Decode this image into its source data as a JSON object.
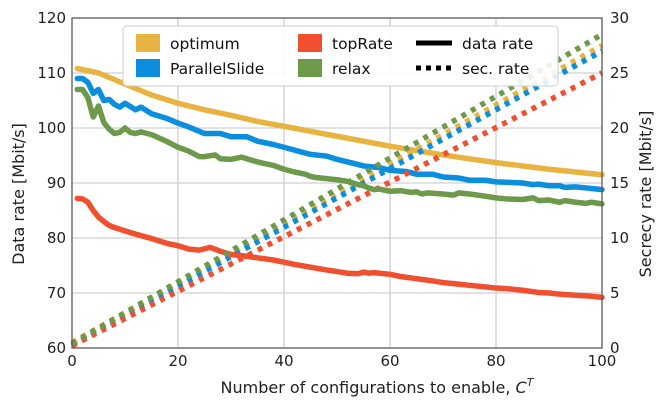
{
  "chart_data": {
    "type": "line",
    "xlabel": "Number of configurations to enable, ",
    "xlabel_symbol": "C",
    "xlabel_superscript": "T",
    "ylabel": "Data rate [Mbit/s]",
    "y2label": "Secrecy rate [Mbit/s]",
    "xlim": [
      0,
      100
    ],
    "ylim": [
      60,
      120
    ],
    "y2lim": [
      0,
      30
    ],
    "xticks": [
      0,
      20,
      40,
      60,
      80,
      100
    ],
    "yticks": [
      60,
      70,
      80,
      90,
      100,
      110,
      120
    ],
    "y2ticks": [
      0,
      5,
      10,
      15,
      20,
      25,
      30
    ],
    "grid": true,
    "series": [
      {
        "name": "optimum",
        "color": "#e8b341",
        "data_rate": {
          "x": [
            1,
            5,
            10,
            15,
            20,
            25,
            30,
            35,
            40,
            45,
            50,
            55,
            60,
            65,
            70,
            75,
            80,
            85,
            90,
            95,
            100
          ],
          "y": [
            110.8,
            110.0,
            108.0,
            106.0,
            104.5,
            103.3,
            102.3,
            101.2,
            100.3,
            99.4,
            98.5,
            97.6,
            96.7,
            95.9,
            95.1,
            94.4,
            93.7,
            93.1,
            92.5,
            92.0,
            91.5
          ]
        },
        "sec_rate": {
          "x": [
            0,
            100
          ],
          "y": [
            0.5,
            27.5
          ]
        }
      },
      {
        "name": "ParallelSlide",
        "color": "#0a8edd",
        "data_rate": {
          "x": [
            1,
            2,
            3,
            4,
            5,
            6,
            7,
            8,
            9,
            10,
            12,
            13,
            15,
            18,
            20,
            22,
            25,
            28,
            30,
            33,
            35,
            38,
            40,
            43,
            45,
            48,
            50,
            53,
            55,
            58,
            60,
            63,
            65,
            68,
            70,
            73,
            75,
            78,
            80,
            83,
            85,
            87,
            88,
            90,
            92,
            93,
            95,
            97,
            98,
            100
          ],
          "y": [
            109.0,
            109.0,
            108.3,
            106.3,
            107.0,
            105.0,
            105.2,
            104.3,
            103.8,
            104.5,
            103.3,
            103.8,
            102.6,
            101.7,
            100.9,
            100.2,
            99.0,
            99.0,
            98.4,
            98.4,
            97.6,
            97.0,
            96.5,
            95.7,
            95.2,
            94.9,
            94.3,
            93.6,
            93.1,
            92.8,
            92.3,
            92.1,
            91.6,
            91.6,
            91.1,
            90.9,
            90.5,
            90.5,
            90.2,
            90.1,
            90.0,
            89.7,
            89.8,
            89.5,
            89.5,
            89.2,
            89.3,
            89.1,
            89.0,
            88.8
          ]
        },
        "sec_rate": {
          "x": [
            0,
            100
          ],
          "y": [
            0.3,
            27.0
          ]
        }
      },
      {
        "name": "topRate",
        "color": "#f05030",
        "data_rate": {
          "x": [
            1,
            2,
            3,
            4,
            5,
            6,
            7,
            8,
            10,
            12,
            15,
            18,
            20,
            22,
            24,
            26,
            28,
            30,
            32,
            35,
            38,
            40,
            42,
            45,
            48,
            50,
            52,
            54,
            55,
            56,
            57,
            58,
            60,
            62,
            65,
            68,
            70,
            72,
            75,
            78,
            80,
            82,
            85,
            88,
            90,
            92,
            95,
            98,
            100
          ],
          "y": [
            87.2,
            87.1,
            86.5,
            85.0,
            83.8,
            83.0,
            82.3,
            81.9,
            81.3,
            80.7,
            79.9,
            79.0,
            78.6,
            78.0,
            77.8,
            78.3,
            77.6,
            77.0,
            76.8,
            76.4,
            76.0,
            75.6,
            75.2,
            74.7,
            74.2,
            73.9,
            73.6,
            73.5,
            73.8,
            73.6,
            73.7,
            73.6,
            73.4,
            73.0,
            72.6,
            72.2,
            71.9,
            71.7,
            71.4,
            71.1,
            70.9,
            70.8,
            70.5,
            70.1,
            70.0,
            69.8,
            69.6,
            69.4,
            69.2
          ]
        },
        "sec_rate": {
          "x": [
            0,
            100
          ],
          "y": [
            0.2,
            25.0
          ]
        }
      },
      {
        "name": "relax",
        "color": "#6c9a4a",
        "data_rate": {
          "x": [
            1,
            2,
            3,
            4,
            5,
            6,
            7,
            8,
            9,
            10,
            11,
            12,
            13,
            15,
            18,
            20,
            22,
            24,
            25,
            27,
            28,
            30,
            32,
            34,
            36,
            38,
            40,
            42,
            44,
            45,
            46,
            48,
            50,
            52,
            54,
            55,
            56,
            57,
            58,
            60,
            62,
            64,
            65,
            66,
            67,
            70,
            72,
            73,
            75,
            78,
            80,
            82,
            85,
            87,
            88,
            90,
            92,
            93,
            95,
            97,
            98,
            100
          ],
          "y": [
            107.0,
            107.0,
            105.5,
            102.0,
            104.0,
            101.0,
            99.8,
            99.0,
            99.2,
            100.0,
            99.2,
            99.0,
            99.3,
            98.8,
            97.5,
            96.5,
            95.8,
            94.8,
            94.8,
            95.1,
            94.4,
            94.3,
            94.7,
            94.1,
            93.6,
            93.2,
            92.5,
            92.0,
            91.6,
            91.2,
            91.0,
            90.8,
            90.6,
            90.3,
            89.7,
            89.5,
            89.1,
            88.8,
            88.9,
            88.5,
            88.6,
            88.3,
            88.4,
            88.0,
            88.2,
            88.0,
            87.8,
            88.2,
            88.0,
            87.6,
            87.3,
            87.1,
            87.0,
            87.3,
            86.8,
            86.9,
            86.5,
            86.8,
            86.5,
            86.3,
            86.5,
            86.2
          ]
        },
        "sec_rate": {
          "x": [
            0,
            100
          ],
          "y": [
            0.4,
            28.5
          ]
        }
      }
    ],
    "legend": {
      "placement": "top",
      "entries": [
        {
          "label": "optimum",
          "kind": "patch",
          "series": 0
        },
        {
          "label": "ParallelSlide",
          "kind": "patch",
          "series": 1
        },
        {
          "label": "topRate",
          "kind": "patch",
          "series": 2
        },
        {
          "label": "relax",
          "kind": "patch",
          "series": 3
        },
        {
          "label": "data rate",
          "kind": "solid-line",
          "color": "#000000"
        },
        {
          "label": "sec. rate",
          "kind": "dotted-line",
          "color": "#000000"
        }
      ]
    },
    "style": {
      "grid_color": "#d0d0d0",
      "frame_color": "#555555",
      "background": "#ffffff"
    }
  }
}
